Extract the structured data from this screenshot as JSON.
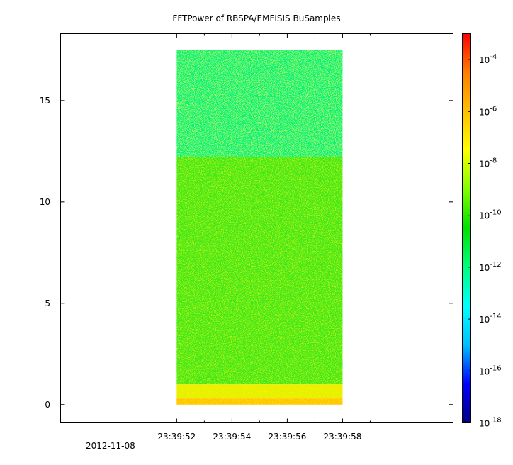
{
  "chart_data": {
    "type": "heatmap",
    "title": "FFTPower of RBSPA/EMFISIS  BuSamples",
    "xlabel": "",
    "ylabel": "",
    "x_ticks": [
      {
        "value": 52,
        "label": "23:39:52"
      },
      {
        "value": 54,
        "label": "23:39:54"
      },
      {
        "value": 56,
        "label": "23:39:56"
      },
      {
        "value": 58,
        "label": "23:39:58"
      }
    ],
    "x_minor_ticks": [
      53,
      55,
      57,
      59
    ],
    "x_date_label": "2012-11-08",
    "xlim": [
      47.8,
      62.0
    ],
    "y_ticks": [
      {
        "value": 0,
        "label": "0"
      },
      {
        "value": 5,
        "label": "5"
      },
      {
        "value": 10,
        "label": "10"
      },
      {
        "value": 15,
        "label": "15"
      }
    ],
    "ylim": [
      -0.9,
      18.3
    ],
    "data_extent": {
      "x": [
        52.0,
        58.0
      ],
      "y": [
        0.0,
        17.5
      ]
    },
    "colorbar": {
      "scale": "log",
      "range": [
        1e-18,
        0.001
      ],
      "ticks": [
        {
          "exp": -18,
          "label": "10",
          "sup": "-18"
        },
        {
          "exp": -16,
          "label": "10",
          "sup": "-16"
        },
        {
          "exp": -14,
          "label": "10",
          "sup": "-14"
        },
        {
          "exp": -12,
          "label": "10",
          "sup": "-12"
        },
        {
          "exp": -10,
          "label": "10",
          "sup": "-10"
        },
        {
          "exp": -8,
          "label": "10",
          "sup": "-8"
        },
        {
          "exp": -6,
          "label": "10",
          "sup": "-6"
        },
        {
          "exp": -4,
          "label": "10",
          "sup": "-4"
        }
      ],
      "colors": [
        "#00007f",
        "#0000ff",
        "#00bfff",
        "#00ffff",
        "#00ff7f",
        "#00e000",
        "#7fff00",
        "#ffff00",
        "#ffbf00",
        "#ff7f00",
        "#ff0000"
      ]
    },
    "bands": [
      {
        "y_range": [
          12.2,
          17.5
        ],
        "power_exp": -12.5,
        "color": "#00f27a"
      },
      {
        "y_range": [
          1.0,
          12.2
        ],
        "power_exp": -10.0,
        "color": "#3ee81c"
      },
      {
        "y_range": [
          0.3,
          1.0
        ],
        "power_exp": -8.0,
        "color": "#e6ef00"
      },
      {
        "y_range": [
          0.0,
          0.3
        ],
        "power_exp": -7.0,
        "color": "#ffc400"
      }
    ],
    "grid": false,
    "legend": "colorbar-right"
  }
}
